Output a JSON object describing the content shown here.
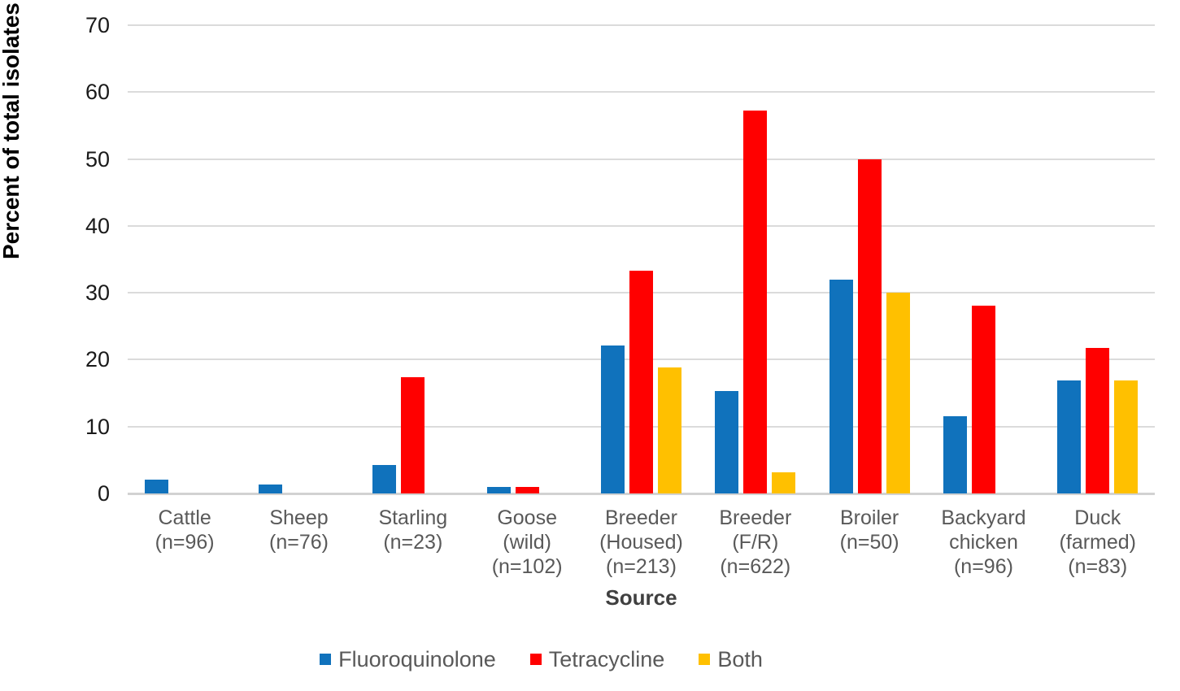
{
  "chart_data": {
    "type": "bar",
    "title": "",
    "xlabel": "Source",
    "ylabel": "Percent of total isolates",
    "ylim": [
      0,
      70
    ],
    "yticks": [
      0,
      10,
      20,
      30,
      40,
      50,
      60,
      70
    ],
    "grid": "horizontal-only",
    "legend_position": "bottom-center",
    "categories": [
      "Cattle (n=96)",
      "Sheep (n=76)",
      "Starling (n=23)",
      "Goose (wild) (n=102)",
      "Breeder (Housed) (n=213)",
      "Breeder (F/R) (n=622)",
      "Broiler (n=50)",
      "Backyard chicken (n=96)",
      "Duck (farmed) (n=83)"
    ],
    "category_label_lines": [
      [
        "Cattle",
        "(n=96)"
      ],
      [
        "Sheep",
        "(n=76)"
      ],
      [
        "Starling",
        "(n=23)"
      ],
      [
        "Goose",
        "(wild)",
        "(n=102)"
      ],
      [
        "Breeder",
        "(Housed)",
        "(n=213)"
      ],
      [
        "Breeder",
        "(F/R)",
        "(n=622)"
      ],
      [
        "Broiler",
        "(n=50)"
      ],
      [
        "Backyard",
        "chicken",
        "(n=96)"
      ],
      [
        "Duck",
        "(farmed)",
        "(n=83)"
      ]
    ],
    "series": [
      {
        "name": "Fluoroquinolone",
        "color": "#1072bc",
        "values": [
          2.1,
          1.3,
          4.3,
          1.0,
          22.1,
          15.3,
          32.0,
          11.5,
          16.9
        ]
      },
      {
        "name": "Tetracycline",
        "color": "#ff0000",
        "values": [
          0,
          0,
          17.4,
          1.0,
          33.3,
          57.2,
          50.0,
          28.1,
          21.7
        ]
      },
      {
        "name": "Both",
        "color": "#ffc000",
        "values": [
          0,
          0,
          0,
          0,
          18.8,
          3.1,
          30.0,
          0,
          16.9
        ]
      }
    ]
  },
  "style_colors": {
    "gridline": "#dbdbdb",
    "axis_line": "#d2d2d2",
    "y_tick_text": "#1a1a1a",
    "x_tick_text": "#595959",
    "legend_text": "#595959",
    "axis_title_text": "#000000"
  }
}
